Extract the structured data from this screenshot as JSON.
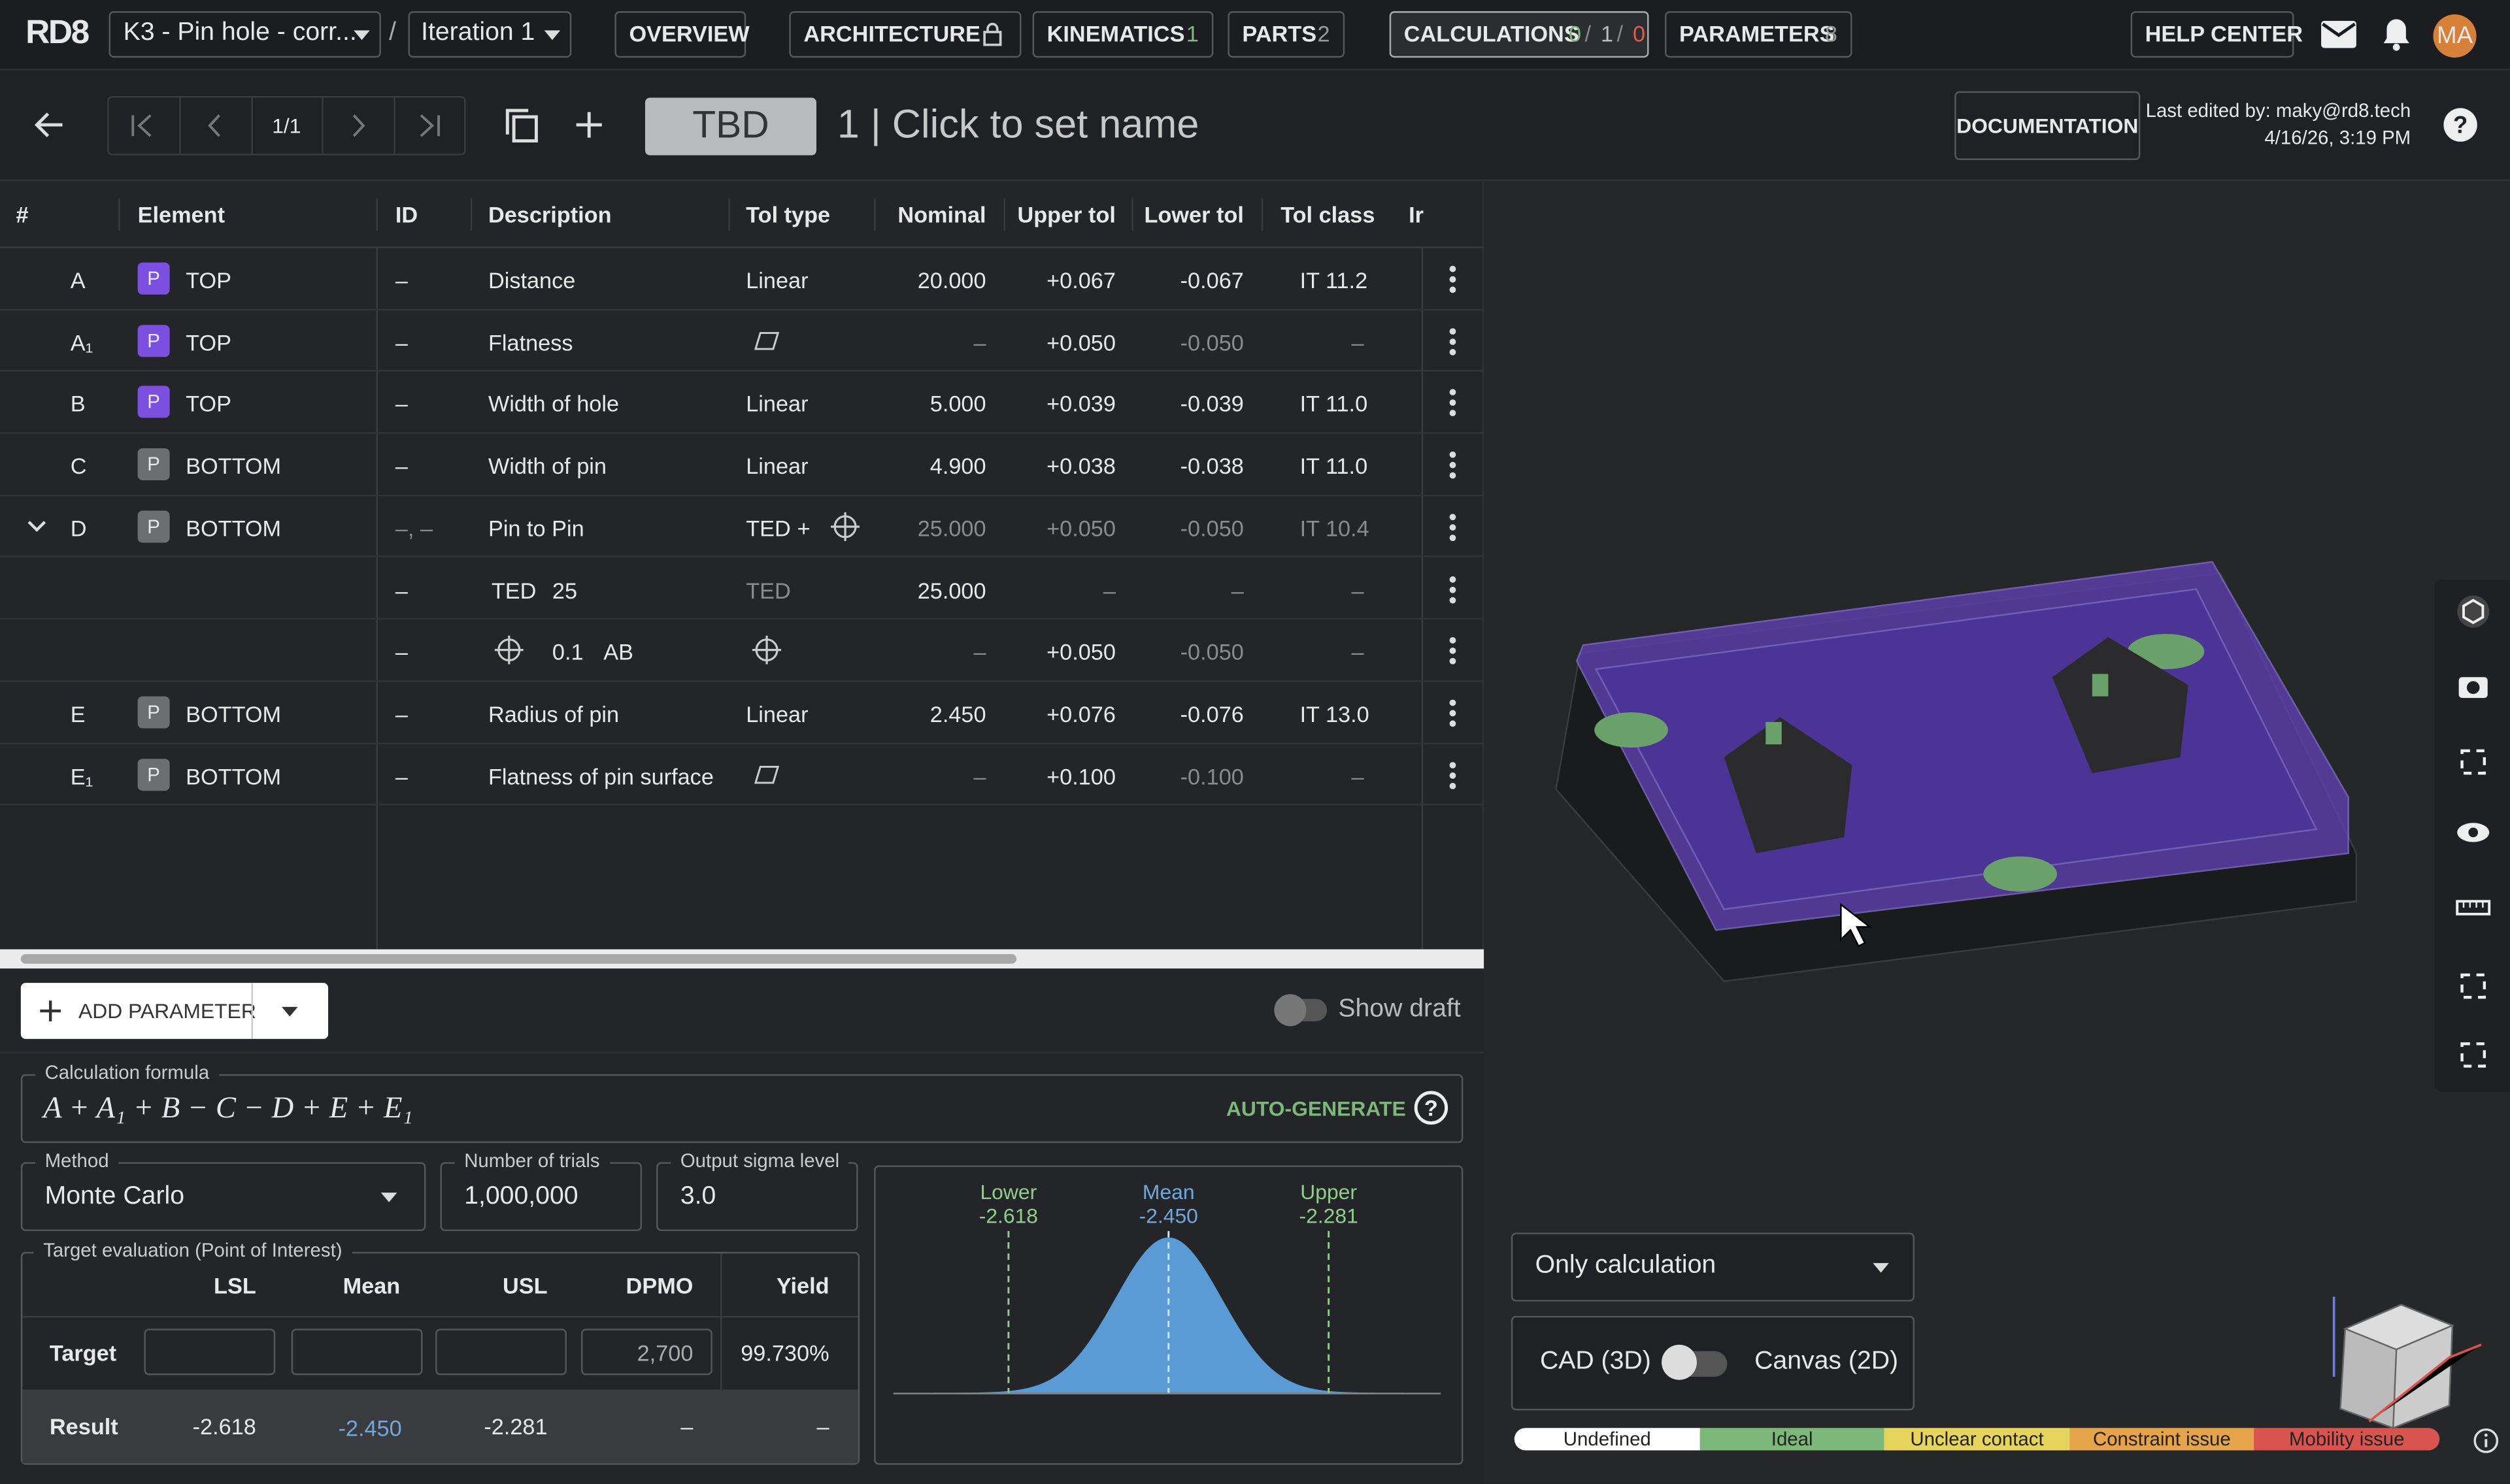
{
  "topbar": {
    "logo": "RD8",
    "project": "K3 - Pin hole - corr...",
    "separator": "/",
    "iteration": "Iteration 1",
    "tabs": [
      {
        "label": "OVERVIEW"
      },
      {
        "label": "ARCHITECTURE"
      },
      {
        "label": "KINEMATICS",
        "badge": "1"
      },
      {
        "label": "PARTS",
        "badge": "2"
      },
      {
        "label": "CALCULATIONS",
        "badge": [
          "0",
          "1",
          "0"
        ],
        "badge_separator": "/"
      },
      {
        "label": "PARAMETERS",
        "badge": "8"
      }
    ],
    "help": "HELP CENTER",
    "avatar": "MA"
  },
  "toolbar": {
    "page": "1/1",
    "status": "TBD",
    "name": "1 | Click to set name",
    "documentation": "DOCUMENTATION",
    "edited_by": "Last edited by: maky@rd8.tech",
    "edited_at": "4/16/26, 3:19 PM"
  },
  "table": {
    "headers": [
      "#",
      "Element",
      "ID",
      "Description",
      "Tol type",
      "Nominal",
      "Upper tol",
      "Lower tol",
      "Tol class",
      "Ir"
    ],
    "rows": [
      {
        "n": "A",
        "p": "P",
        "el": "TOP",
        "id": "–",
        "desc": "Distance",
        "tol": "Linear",
        "nom": "20.000",
        "up": "+0.067",
        "low": "-0.067",
        "cls": "IT 11.2"
      },
      {
        "n": "A₁",
        "p": "P",
        "el": "TOP",
        "id": "–",
        "desc": "Flatness",
        "nom": "–",
        "up": "+0.050",
        "low": "-0.050",
        "cls": "–"
      },
      {
        "n": "B",
        "p": "P",
        "el": "TOP",
        "id": "–",
        "desc": "Width of hole",
        "tol": "Linear",
        "nom": "5.000",
        "up": "+0.039",
        "low": "-0.039",
        "cls": "IT 11.0"
      },
      {
        "n": "C",
        "p": "P",
        "el": "BOTTOM",
        "id": "–",
        "desc": "Width of pin",
        "tol": "Linear",
        "nom": "4.900",
        "up": "+0.038",
        "low": "-0.038",
        "cls": "IT 11.0"
      },
      {
        "n": "D",
        "p": "P",
        "el": "BOTTOM",
        "id": "–, –",
        "desc": "Pin to Pin",
        "tol": "TED",
        "tol_extra": "+",
        "nom": "25.000",
        "up": "+0.050",
        "low": "-0.050",
        "cls": "IT 10.4"
      },
      {
        "id": "–",
        "desc": "TED",
        "desc_value": "25",
        "tol": "TED",
        "nom": "25.000",
        "up": "–",
        "low": "–",
        "cls": "–"
      },
      {
        "id": "–",
        "desc_value": "0.1",
        "desc_datum": "AB",
        "nom": "–",
        "up": "+0.050",
        "low": "-0.050",
        "cls": "–"
      },
      {
        "n": "E",
        "p": "P",
        "el": "BOTTOM",
        "id": "–",
        "desc": "Radius of pin",
        "tol": "Linear",
        "nom": "2.450",
        "up": "+0.076",
        "low": "-0.076",
        "cls": "IT 13.0"
      },
      {
        "n": "E₁",
        "p": "P",
        "el": "BOTTOM",
        "id": "–",
        "desc": "Flatness of pin surface",
        "nom": "–",
        "up": "+0.100",
        "low": "-0.100",
        "cls": "–"
      }
    ]
  },
  "controls": {
    "add_parameter": "ADD PARAMETER",
    "show_draft": "Show draft"
  },
  "formula": {
    "label": "Calculation formula",
    "value": "A + A₁ + B − C − D + E + E₁",
    "auto": "AUTO-GENERATE"
  },
  "settings": {
    "method_label": "Method",
    "method": "Monte Carlo",
    "trials_label": "Number of trials",
    "trials": "1,000,000",
    "sigma_label": "Output sigma level",
    "sigma": "3.0"
  },
  "target": {
    "label": "Target evaluation (Point of Interest)",
    "headers": [
      "LSL",
      "Mean",
      "USL",
      "DPMO",
      "Yield"
    ],
    "target_row": {
      "label": "Target",
      "dpmo": "2,700",
      "yield": "99.730%"
    },
    "result_row": {
      "label": "Result",
      "lsl": "-2.618",
      "mean": "-2.450",
      "usl": "-2.281",
      "dpmo": "–",
      "yield": "–"
    }
  },
  "distribution": {
    "lower_label": "Lower",
    "lower": "-2.618",
    "mean_label": "Mean",
    "mean": "-2.450",
    "upper_label": "Upper",
    "upper": "-2.281"
  },
  "viewer": {
    "filter": "Only calculation",
    "cad": "CAD (3D)",
    "canvas": "Canvas (2D)",
    "legend": [
      "Undefined",
      "Ideal",
      "Unclear contact",
      "Constraint issue",
      "Mobility issue"
    ]
  }
}
